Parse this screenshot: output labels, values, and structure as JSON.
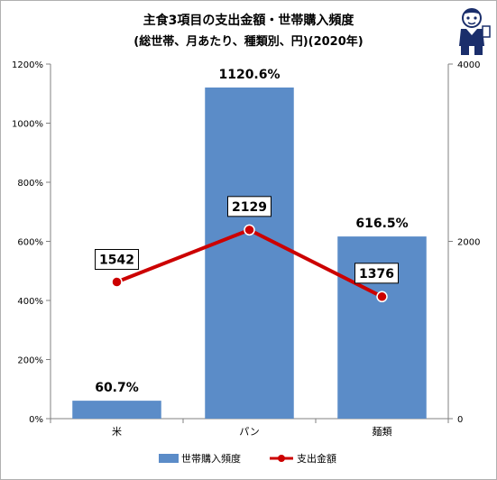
{
  "chart_data": {
    "type": "bar",
    "title": "主食3項目の支出金額・世帯購入頻度",
    "subtitle": "(総世帯、月あたり、種類別、円)(2020年)",
    "categories": [
      "米",
      "パン",
      "麺類"
    ],
    "series": [
      {
        "name": "世帯購入頻度",
        "type": "bar",
        "axis": "left",
        "color": "#5b8cc8",
        "values": [
          60.7,
          1120.6,
          616.5
        ],
        "labels": [
          "60.7%",
          "1120.6%",
          "616.5%"
        ]
      },
      {
        "name": "支出金額",
        "type": "line",
        "axis": "right",
        "color": "#cc0000",
        "values": [
          1542,
          2129,
          1376
        ],
        "labels": [
          "1542",
          "2129",
          "1376"
        ]
      }
    ],
    "left_axis": {
      "ylim": [
        0,
        1200
      ],
      "ticks": [
        0,
        200,
        400,
        600,
        800,
        1000,
        1200
      ],
      "tick_labels": [
        "0%",
        "200%",
        "400%",
        "600%",
        "800%",
        "1000%",
        "1200%"
      ]
    },
    "right_axis": {
      "ylim": [
        0,
        4000
      ],
      "ticks": [
        0,
        2000,
        4000
      ],
      "tick_labels": [
        "0",
        "2000",
        "4000"
      ]
    },
    "grid": false,
    "legend_position": "bottom"
  }
}
